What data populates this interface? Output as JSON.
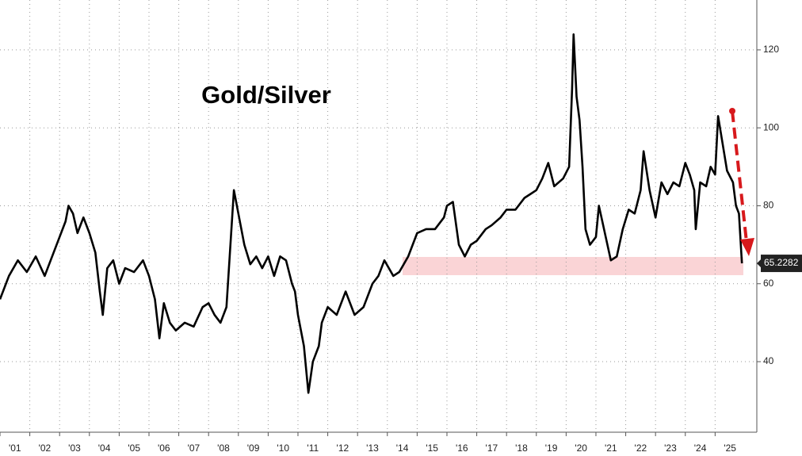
{
  "chart_data": {
    "type": "line",
    "title": "Gold/Silver",
    "x": [
      2001.0,
      2001.3,
      2001.6,
      2001.9,
      2002.2,
      2002.5,
      2002.8,
      2003.0,
      2003.2,
      2003.3,
      2003.45,
      2003.6,
      2003.8,
      2004.0,
      2004.2,
      2004.35,
      2004.45,
      2004.6,
      2004.8,
      2005.0,
      2005.2,
      2005.5,
      2005.8,
      2006.0,
      2006.2,
      2006.35,
      2006.5,
      2006.7,
      2006.9,
      2007.2,
      2007.5,
      2007.8,
      2008.0,
      2008.2,
      2008.4,
      2008.6,
      2008.75,
      2008.85,
      2009.0,
      2009.2,
      2009.4,
      2009.6,
      2009.8,
      2010.0,
      2010.2,
      2010.4,
      2010.6,
      2010.8,
      2010.9,
      2011.0,
      2011.2,
      2011.3,
      2011.35,
      2011.5,
      2011.7,
      2011.8,
      2012.0,
      2012.3,
      2012.6,
      2012.9,
      2013.2,
      2013.5,
      2013.7,
      2013.9,
      2014.2,
      2014.4,
      2014.7,
      2015.0,
      2015.3,
      2015.6,
      2015.9,
      2016.0,
      2016.2,
      2016.4,
      2016.6,
      2016.8,
      2017.0,
      2017.3,
      2017.5,
      2017.8,
      2018.0,
      2018.3,
      2018.6,
      2018.8,
      2019.0,
      2019.2,
      2019.4,
      2019.6,
      2019.9,
      2020.1,
      2020.2,
      2020.25,
      2020.35,
      2020.45,
      2020.55,
      2020.65,
      2020.8,
      2021.0,
      2021.1,
      2021.3,
      2021.5,
      2021.7,
      2021.9,
      2022.1,
      2022.3,
      2022.5,
      2022.6,
      2022.8,
      2023.0,
      2023.2,
      2023.4,
      2023.6,
      2023.8,
      2024.0,
      2024.15,
      2024.3,
      2024.35,
      2024.5,
      2024.7,
      2024.85,
      2025.0,
      2025.1,
      2025.25,
      2025.4,
      2025.6,
      2025.7,
      2025.8,
      2025.9
    ],
    "series": [
      {
        "name": "Gold/Silver",
        "color": "#000000",
        "values": [
          56,
          62,
          66,
          63,
          67,
          62,
          68,
          72,
          76,
          80,
          78,
          73,
          77,
          73,
          68,
          58,
          52,
          64,
          66,
          60,
          64,
          63,
          66,
          62,
          56,
          46,
          55,
          50,
          48,
          50,
          49,
          54,
          55,
          52,
          50,
          54,
          72,
          84,
          78,
          70,
          65,
          67,
          64,
          67,
          62,
          67,
          66,
          60,
          58,
          52,
          44,
          36,
          32,
          40,
          44,
          50,
          54,
          52,
          58,
          52,
          54,
          60,
          62,
          66,
          62,
          63,
          67,
          73,
          74,
          74,
          77,
          80,
          81,
          70,
          67,
          70,
          71,
          74,
          75,
          77,
          79,
          79,
          82,
          83,
          84,
          87,
          91,
          85,
          87,
          90,
          110,
          124,
          108,
          102,
          90,
          74,
          70,
          72,
          80,
          73,
          66,
          67,
          74,
          79,
          78,
          84,
          94,
          84,
          77,
          86,
          83,
          86,
          85,
          91,
          88,
          84,
          74,
          86,
          85,
          90,
          88,
          103,
          96,
          89,
          86,
          80,
          78,
          65.2282
        ]
      }
    ],
    "xlim": [
      2001,
      2026.4
    ],
    "ylim": [
      21.9,
      132.8
    ],
    "xticks": [
      {
        "value": 2001,
        "label": "'01"
      },
      {
        "value": 2002,
        "label": "'02"
      },
      {
        "value": 2003,
        "label": "'03"
      },
      {
        "value": 2004,
        "label": "'04"
      },
      {
        "value": 2005,
        "label": "'05"
      },
      {
        "value": 2006,
        "label": "'06"
      },
      {
        "value": 2007,
        "label": "'07"
      },
      {
        "value": 2008,
        "label": "'08"
      },
      {
        "value": 2009,
        "label": "'09"
      },
      {
        "value": 2010,
        "label": "'10"
      },
      {
        "value": 2011,
        "label": "'11"
      },
      {
        "value": 2012,
        "label": "'12"
      },
      {
        "value": 2013,
        "label": "'13"
      },
      {
        "value": 2014,
        "label": "'14"
      },
      {
        "value": 2015,
        "label": "'15"
      },
      {
        "value": 2016,
        "label": "'16"
      },
      {
        "value": 2017,
        "label": "'17"
      },
      {
        "value": 2018,
        "label": "'18"
      },
      {
        "value": 2019,
        "label": "'19"
      },
      {
        "value": 2020,
        "label": "'20"
      },
      {
        "value": 2021,
        "label": "'21"
      },
      {
        "value": 2022,
        "label": "'22"
      },
      {
        "value": 2023,
        "label": "'23"
      },
      {
        "value": 2024,
        "label": "'24"
      },
      {
        "value": 2025,
        "label": "'25"
      }
    ],
    "yticks": [
      40,
      60,
      80,
      100,
      120
    ],
    "grid": true
  }
}
